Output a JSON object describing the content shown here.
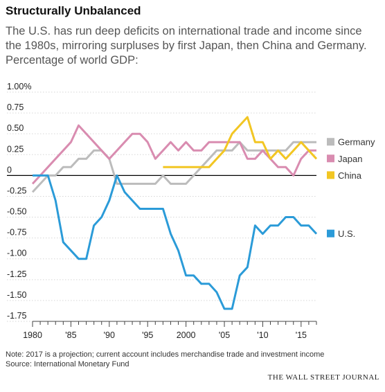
{
  "title": "Structurally Unbalanced",
  "subtitle": "The U.S. has run deep deficits on international trade and income since the 1980s, mirroring surpluses by first Japan, then China and Germany. Percentage of world GDP:",
  "note": "Note: 2017 is a projection; current account includes merchandise trade and investment income",
  "source": "Source: International Monetary Fund",
  "brand": "THE WALL STREET JOURNAL",
  "chart_data": {
    "type": "line",
    "ylim": [
      -1.75,
      1.0
    ],
    "xlim": [
      1980,
      2017
    ],
    "yticks": [
      {
        "v": 1.0,
        "label": "1.00%"
      },
      {
        "v": 0.75,
        "label": "0.75"
      },
      {
        "v": 0.5,
        "label": "0.50"
      },
      {
        "v": 0.25,
        "label": "0.25"
      },
      {
        "v": 0,
        "label": "0"
      },
      {
        "v": -0.25,
        "label": "-0.25"
      },
      {
        "v": -0.5,
        "label": "-0.50"
      },
      {
        "v": -0.75,
        "label": "-0.75"
      },
      {
        "v": -1.0,
        "label": "-1.00"
      },
      {
        "v": -1.25,
        "label": "-1.25"
      },
      {
        "v": -1.5,
        "label": "-1.50"
      },
      {
        "v": -1.75,
        "label": "-1.75"
      }
    ],
    "xticks": [
      {
        "v": 1980,
        "label": "1980"
      },
      {
        "v": 1985,
        "label": "'85"
      },
      {
        "v": 1990,
        "label": "'90"
      },
      {
        "v": 1995,
        "label": "'95"
      },
      {
        "v": 2000,
        "label": "2000"
      },
      {
        "v": 2005,
        "label": "'05"
      },
      {
        "v": 2010,
        "label": "'10"
      },
      {
        "v": 2015,
        "label": "'15"
      }
    ],
    "grid": "horizontal",
    "legend_position": "right",
    "series": [
      {
        "name": "Germany",
        "color": "#bcbcbc",
        "legend_value": 0.4,
        "x": [
          1980,
          1981,
          1982,
          1983,
          1984,
          1985,
          1986,
          1987,
          1988,
          1989,
          1990,
          1991,
          1992,
          1993,
          1994,
          1995,
          1996,
          1997,
          1998,
          1999,
          2000,
          2001,
          2002,
          2003,
          2004,
          2005,
          2006,
          2007,
          2008,
          2009,
          2010,
          2011,
          2012,
          2013,
          2014,
          2015,
          2016,
          2017
        ],
        "values": [
          -0.2,
          -0.1,
          0,
          0,
          0.1,
          0.1,
          0.2,
          0.2,
          0.3,
          0.3,
          0.2,
          -0.1,
          -0.1,
          -0.1,
          -0.1,
          -0.1,
          -0.1,
          0,
          -0.1,
          -0.1,
          -0.1,
          0,
          0.1,
          0.2,
          0.3,
          0.3,
          0.3,
          0.4,
          0.3,
          0.3,
          0.3,
          0.3,
          0.3,
          0.3,
          0.4,
          0.4,
          0.4,
          0.4
        ]
      },
      {
        "name": "Japan",
        "color": "#d98cb0",
        "legend_value": 0.2,
        "x": [
          1980,
          1981,
          1982,
          1983,
          1984,
          1985,
          1986,
          1987,
          1988,
          1989,
          1990,
          1991,
          1992,
          1993,
          1994,
          1995,
          1996,
          1997,
          1998,
          1999,
          2000,
          2001,
          2002,
          2003,
          2004,
          2005,
          2006,
          2007,
          2008,
          2009,
          2010,
          2011,
          2012,
          2013,
          2014,
          2015,
          2016,
          2017
        ],
        "values": [
          -0.1,
          0,
          0.1,
          0.2,
          0.3,
          0.4,
          0.6,
          0.5,
          0.4,
          0.3,
          0.2,
          0.3,
          0.4,
          0.5,
          0.5,
          0.4,
          0.2,
          0.3,
          0.4,
          0.3,
          0.4,
          0.3,
          0.3,
          0.4,
          0.4,
          0.4,
          0.4,
          0.4,
          0.2,
          0.2,
          0.3,
          0.2,
          0.1,
          0.1,
          0,
          0.2,
          0.3,
          0.3
        ]
      },
      {
        "name": "China",
        "color": "#f2c623",
        "legend_value": 0,
        "x": [
          1997,
          1998,
          1999,
          2000,
          2001,
          2002,
          2003,
          2004,
          2005,
          2006,
          2007,
          2008,
          2009,
          2010,
          2011,
          2012,
          2013,
          2014,
          2015,
          2016,
          2017
        ],
        "values": [
          0.1,
          0.1,
          0.1,
          0.1,
          0.1,
          0.1,
          0.1,
          0.2,
          0.3,
          0.5,
          0.6,
          0.7,
          0.4,
          0.4,
          0.2,
          0.3,
          0.2,
          0.3,
          0.4,
          0.3,
          0.2
        ]
      },
      {
        "name": "U.S.",
        "color": "#2b9bd8",
        "legend_value": -0.7,
        "x": [
          1980,
          1981,
          1982,
          1983,
          1984,
          1985,
          1986,
          1987,
          1988,
          1989,
          1990,
          1991,
          1992,
          1993,
          1994,
          1995,
          1996,
          1997,
          1998,
          1999,
          2000,
          2001,
          2002,
          2003,
          2004,
          2005,
          2006,
          2007,
          2008,
          2009,
          2010,
          2011,
          2012,
          2013,
          2014,
          2015,
          2016,
          2017
        ],
        "values": [
          0,
          0,
          0,
          -0.3,
          -0.8,
          -0.9,
          -1.0,
          -1.0,
          -0.6,
          -0.5,
          -0.3,
          0,
          -0.2,
          -0.3,
          -0.4,
          -0.4,
          -0.4,
          -0.4,
          -0.7,
          -0.9,
          -1.2,
          -1.2,
          -1.3,
          -1.3,
          -1.4,
          -1.6,
          -1.6,
          -1.2,
          -1.1,
          -0.6,
          -0.7,
          -0.6,
          -0.6,
          -0.5,
          -0.5,
          -0.6,
          -0.6,
          -0.7
        ]
      }
    ]
  }
}
